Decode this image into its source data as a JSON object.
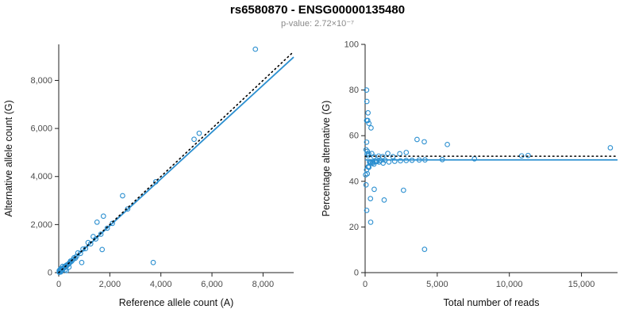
{
  "header": {
    "title": "rs6580870 - ENSG00000135480",
    "subtitle": "p-value: 2.72×10⁻⁷"
  },
  "colors": {
    "accent": "#2b8fd0",
    "dashed_line": "#000000",
    "axis": "#222222",
    "tick_text": "#4a4a4a",
    "subtitle_text": "#8a8a8a"
  },
  "chart_data": [
    {
      "type": "scatter",
      "xlabel": "Reference allele count (A)",
      "ylabel": "Alternative allele count (G)",
      "xlim": [
        0,
        9200
      ],
      "ylim": [
        0,
        9500
      ],
      "grid": false,
      "marker": "open-circle",
      "xticks": {
        "values": [
          0,
          2000,
          4000,
          6000,
          8000
        ],
        "labels": [
          "0",
          "2,000",
          "4,000",
          "6,000",
          "8,000"
        ]
      },
      "yticks": {
        "values": [
          0,
          2000,
          4000,
          6000,
          8000
        ],
        "labels": [
          "0",
          "2,000",
          "4,000",
          "6,000",
          "8,000"
        ]
      },
      "points": [
        [
          20,
          15
        ],
        [
          30,
          35
        ],
        [
          40,
          25
        ],
        [
          45,
          60
        ],
        [
          55,
          45
        ],
        [
          60,
          120
        ],
        [
          65,
          70
        ],
        [
          75,
          85
        ],
        [
          85,
          65
        ],
        [
          90,
          170
        ],
        [
          100,
          105
        ],
        [
          110,
          95
        ],
        [
          120,
          130
        ],
        [
          140,
          120
        ],
        [
          150,
          260
        ],
        [
          160,
          150
        ],
        [
          180,
          170
        ],
        [
          200,
          185
        ],
        [
          220,
          240
        ],
        [
          250,
          120
        ],
        [
          250,
          230
        ],
        [
          280,
          260
        ],
        [
          300,
          85
        ],
        [
          300,
          310
        ],
        [
          320,
          290
        ],
        [
          350,
          330
        ],
        [
          380,
          360
        ],
        [
          400,
          230
        ],
        [
          410,
          390
        ],
        [
          430,
          410
        ],
        [
          460,
          480
        ],
        [
          500,
          470
        ],
        [
          550,
          530
        ],
        [
          600,
          620
        ],
        [
          650,
          600
        ],
        [
          700,
          680
        ],
        [
          750,
          820
        ],
        [
          850,
          800
        ],
        [
          900,
          420
        ],
        [
          950,
          980
        ],
        [
          1050,
          1000
        ],
        [
          1150,
          1250
        ],
        [
          1250,
          1200
        ],
        [
          1350,
          1500
        ],
        [
          1450,
          1400
        ],
        [
          1500,
          2100
        ],
        [
          1650,
          1600
        ],
        [
          1700,
          960
        ],
        [
          1750,
          2350
        ],
        [
          1900,
          1850
        ],
        [
          2100,
          2050
        ],
        [
          2500,
          3200
        ],
        [
          2700,
          2650
        ],
        [
          3700,
          420
        ],
        [
          3800,
          3780
        ],
        [
          5300,
          5550
        ],
        [
          5500,
          5800
        ],
        [
          7700,
          9300
        ],
        [
          30,
          90
        ],
        [
          80,
          30
        ],
        [
          60,
          140
        ],
        [
          35,
          70
        ],
        [
          20,
          80
        ]
      ],
      "lines": [
        {
          "kind": "linear",
          "slope": 0.975,
          "intercept": 0,
          "style": "solid",
          "color": "#2b8fd0"
        },
        {
          "kind": "linear",
          "slope": 1,
          "intercept": 0,
          "style": "dotted",
          "color": "#000000"
        }
      ]
    },
    {
      "type": "scatter",
      "xlabel": "Total number of reads",
      "ylabel": "Percentage alternative (G)",
      "xlim": [
        0,
        17500
      ],
      "ylim": [
        0,
        100
      ],
      "grid": false,
      "marker": "open-circle",
      "xticks": {
        "values": [
          0,
          5000,
          10000,
          15000
        ],
        "labels": [
          "0",
          "5,000",
          "10,000",
          "15,000"
        ]
      },
      "yticks": {
        "values": [
          0,
          20,
          40,
          60,
          80,
          100
        ],
        "labels": [
          "0",
          "20",
          "40",
          "60",
          "80",
          "100"
        ]
      },
      "points_derived_from": "x = ref + alt reads; y = alt / (ref + alt) × 100, using the allele-count points of the left panel",
      "lines": [
        {
          "kind": "hline",
          "y": 49.4,
          "style": "solid",
          "color": "#2b8fd0"
        },
        {
          "kind": "hline",
          "y": 51,
          "style": "dotted",
          "color": "#000000"
        }
      ]
    }
  ]
}
